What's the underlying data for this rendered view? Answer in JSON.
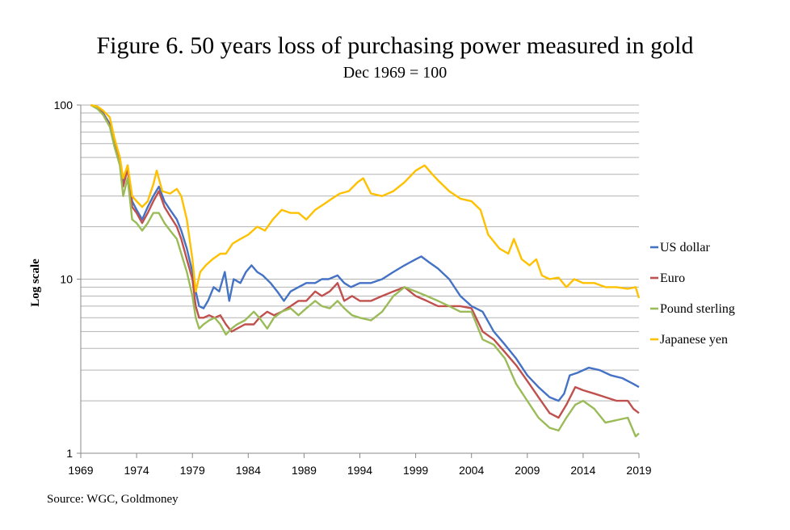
{
  "chart_data": {
    "type": "line",
    "title": "Figure 6. 50 years loss of purchasing power measured in gold",
    "subtitle": "Dec 1969 = 100",
    "ylabel": "Log scale",
    "xlabel": "",
    "y_scale": "log",
    "ylim": [
      1,
      100
    ],
    "xlim": [
      1969,
      2019
    ],
    "y_ticks": [
      "1",
      "10",
      "100"
    ],
    "x_ticks": [
      "1969",
      "1974",
      "1979",
      "1984",
      "1989",
      "1994",
      "1999",
      "2004",
      "2009",
      "2014",
      "2019"
    ],
    "grid": true,
    "legend_position": "right",
    "source": "Source: WGC, Goldmoney",
    "series": [
      {
        "name": "US dollar",
        "color": "#4472C4",
        "points": [
          [
            1969.9,
            100
          ],
          [
            1970.5,
            97
          ],
          [
            1971,
            90
          ],
          [
            1971.6,
            78
          ],
          [
            1972,
            62
          ],
          [
            1972.5,
            50
          ],
          [
            1972.8,
            35
          ],
          [
            1973.2,
            45
          ],
          [
            1973.6,
            28
          ],
          [
            1974,
            25
          ],
          [
            1974.5,
            22
          ],
          [
            1975,
            26
          ],
          [
            1975.5,
            30
          ],
          [
            1976,
            34
          ],
          [
            1976.5,
            28
          ],
          [
            1977,
            25
          ],
          [
            1977.6,
            22
          ],
          [
            1978,
            19
          ],
          [
            1978.5,
            15
          ],
          [
            1979,
            11
          ],
          [
            1979.3,
            8.5
          ],
          [
            1979.6,
            7
          ],
          [
            1980,
            6.8
          ],
          [
            1980.4,
            7.5
          ],
          [
            1980.9,
            9
          ],
          [
            1981.4,
            8.5
          ],
          [
            1981.9,
            11
          ],
          [
            1982.3,
            7.5
          ],
          [
            1982.7,
            10
          ],
          [
            1983.3,
            9.5
          ],
          [
            1983.8,
            11
          ],
          [
            1984.3,
            12
          ],
          [
            1984.8,
            11
          ],
          [
            1985.3,
            10.5
          ],
          [
            1986,
            9.5
          ],
          [
            1986.6,
            8.5
          ],
          [
            1987.2,
            7.5
          ],
          [
            1987.8,
            8.5
          ],
          [
            1988.5,
            9
          ],
          [
            1989.2,
            9.5
          ],
          [
            1990,
            9.5
          ],
          [
            1990.6,
            10
          ],
          [
            1991.2,
            10
          ],
          [
            1992,
            10.5
          ],
          [
            1992.6,
            9.5
          ],
          [
            1993.2,
            9
          ],
          [
            1994,
            9.5
          ],
          [
            1995,
            9.5
          ],
          [
            1996,
            10
          ],
          [
            1997,
            11
          ],
          [
            1998,
            12
          ],
          [
            1999,
            13
          ],
          [
            1999.5,
            13.5
          ],
          [
            2000.2,
            12.5
          ],
          [
            2001,
            11.5
          ],
          [
            2002,
            10
          ],
          [
            2003,
            8
          ],
          [
            2004,
            7
          ],
          [
            2005,
            6.5
          ],
          [
            2006,
            5
          ],
          [
            2007,
            4.2
          ],
          [
            2008,
            3.5
          ],
          [
            2009,
            2.8
          ],
          [
            2010,
            2.4
          ],
          [
            2011,
            2.1
          ],
          [
            2011.8,
            2.0
          ],
          [
            2012.3,
            2.2
          ],
          [
            2012.8,
            2.8
          ],
          [
            2013.5,
            2.9
          ],
          [
            2014.5,
            3.1
          ],
          [
            2015.5,
            3.0
          ],
          [
            2016.5,
            2.8
          ],
          [
            2017.5,
            2.7
          ],
          [
            2018.5,
            2.5
          ],
          [
            2019,
            2.4
          ]
        ]
      },
      {
        "name": "Euro",
        "color": "#C0504D",
        "points": [
          [
            1969.9,
            100
          ],
          [
            1970.5,
            96
          ],
          [
            1971,
            89
          ],
          [
            1971.6,
            76
          ],
          [
            1972,
            60
          ],
          [
            1972.5,
            48
          ],
          [
            1972.8,
            34
          ],
          [
            1973.2,
            43
          ],
          [
            1973.6,
            26
          ],
          [
            1974,
            24
          ],
          [
            1974.5,
            21
          ],
          [
            1975,
            24
          ],
          [
            1975.5,
            28
          ],
          [
            1976,
            32
          ],
          [
            1976.5,
            26
          ],
          [
            1977,
            23
          ],
          [
            1977.6,
            20
          ],
          [
            1978,
            17
          ],
          [
            1978.5,
            13
          ],
          [
            1979,
            10
          ],
          [
            1979.3,
            7
          ],
          [
            1979.6,
            6
          ],
          [
            1980,
            6
          ],
          [
            1980.5,
            6.2
          ],
          [
            1981,
            6
          ],
          [
            1981.5,
            6.2
          ],
          [
            1982,
            5.5
          ],
          [
            1982.5,
            5
          ],
          [
            1983,
            5.2
          ],
          [
            1983.7,
            5.5
          ],
          [
            1984.5,
            5.5
          ],
          [
            1985,
            6
          ],
          [
            1985.7,
            6.5
          ],
          [
            1986.3,
            6.2
          ],
          [
            1987,
            6.5
          ],
          [
            1987.8,
            7
          ],
          [
            1988.5,
            7.5
          ],
          [
            1989.2,
            7.5
          ],
          [
            1990,
            8.5
          ],
          [
            1990.6,
            8
          ],
          [
            1991.3,
            8.5
          ],
          [
            1992,
            9.5
          ],
          [
            1992.6,
            7.5
          ],
          [
            1993.3,
            8
          ],
          [
            1994,
            7.5
          ],
          [
            1995,
            7.5
          ],
          [
            1996,
            8
          ],
          [
            1997,
            8.5
          ],
          [
            1998,
            9
          ],
          [
            1999,
            8
          ],
          [
            2000,
            7.5
          ],
          [
            2001,
            7
          ],
          [
            2002,
            7
          ],
          [
            2003,
            7
          ],
          [
            2004,
            6.8
          ],
          [
            2005,
            5
          ],
          [
            2006,
            4.5
          ],
          [
            2007,
            3.8
          ],
          [
            2008,
            3.2
          ],
          [
            2009,
            2.6
          ],
          [
            2010,
            2.1
          ],
          [
            2011,
            1.7
          ],
          [
            2011.8,
            1.6
          ],
          [
            2012.5,
            1.9
          ],
          [
            2013.3,
            2.4
          ],
          [
            2014,
            2.3
          ],
          [
            2015,
            2.2
          ],
          [
            2016,
            2.1
          ],
          [
            2017,
            2.0
          ],
          [
            2018,
            2.0
          ],
          [
            2018.5,
            1.8
          ],
          [
            2019,
            1.7
          ]
        ]
      },
      {
        "name": "Pound sterling",
        "color": "#9BBB59",
        "points": [
          [
            1969.9,
            100
          ],
          [
            1970.5,
            95
          ],
          [
            1971,
            88
          ],
          [
            1971.6,
            75
          ],
          [
            1972,
            58
          ],
          [
            1972.5,
            45
          ],
          [
            1972.8,
            30
          ],
          [
            1973.2,
            38
          ],
          [
            1973.6,
            22
          ],
          [
            1974,
            21
          ],
          [
            1974.5,
            19
          ],
          [
            1975,
            21
          ],
          [
            1975.5,
            24
          ],
          [
            1976,
            24
          ],
          [
            1976.5,
            21
          ],
          [
            1977,
            19
          ],
          [
            1977.6,
            17
          ],
          [
            1978,
            14
          ],
          [
            1978.5,
            11
          ],
          [
            1979,
            8
          ],
          [
            1979.3,
            6
          ],
          [
            1979.6,
            5.2
          ],
          [
            1980,
            5.5
          ],
          [
            1980.5,
            5.8
          ],
          [
            1981,
            6
          ],
          [
            1981.5,
            5.5
          ],
          [
            1982,
            4.8
          ],
          [
            1982.5,
            5.2
          ],
          [
            1983,
            5.5
          ],
          [
            1983.7,
            5.8
          ],
          [
            1984.5,
            6.5
          ],
          [
            1985,
            6
          ],
          [
            1985.7,
            5.2
          ],
          [
            1986.3,
            6
          ],
          [
            1987,
            6.5
          ],
          [
            1987.8,
            6.8
          ],
          [
            1988.5,
            6.2
          ],
          [
            1989.2,
            6.8
          ],
          [
            1990,
            7.5
          ],
          [
            1990.6,
            7
          ],
          [
            1991.3,
            6.8
          ],
          [
            1992,
            7.5
          ],
          [
            1992.6,
            6.8
          ],
          [
            1993.3,
            6.2
          ],
          [
            1994,
            6
          ],
          [
            1995,
            5.8
          ],
          [
            1996,
            6.5
          ],
          [
            1997,
            8
          ],
          [
            1998,
            9
          ],
          [
            1999,
            8.5
          ],
          [
            2000,
            8
          ],
          [
            2001,
            7.5
          ],
          [
            2002,
            7
          ],
          [
            2003,
            6.5
          ],
          [
            2004,
            6.5
          ],
          [
            2005,
            4.5
          ],
          [
            2006,
            4.2
          ],
          [
            2007,
            3.5
          ],
          [
            2008,
            2.5
          ],
          [
            2009,
            2.0
          ],
          [
            2010,
            1.6
          ],
          [
            2011,
            1.4
          ],
          [
            2011.8,
            1.35
          ],
          [
            2012.5,
            1.6
          ],
          [
            2013.3,
            1.9
          ],
          [
            2014,
            2.0
          ],
          [
            2015,
            1.8
          ],
          [
            2016,
            1.5
          ],
          [
            2017,
            1.55
          ],
          [
            2018,
            1.6
          ],
          [
            2018.7,
            1.25
          ],
          [
            2019,
            1.3
          ]
        ]
      },
      {
        "name": "Japanese yen",
        "color": "#FFC000",
        "points": [
          [
            1969.9,
            100
          ],
          [
            1970.5,
            98
          ],
          [
            1971,
            93
          ],
          [
            1971.6,
            85
          ],
          [
            1972,
            65
          ],
          [
            1972.5,
            50
          ],
          [
            1972.8,
            38
          ],
          [
            1973.2,
            45
          ],
          [
            1973.6,
            30
          ],
          [
            1974,
            28
          ],
          [
            1974.5,
            26
          ],
          [
            1975,
            28
          ],
          [
            1975.5,
            35
          ],
          [
            1975.8,
            42
          ],
          [
            1976.3,
            32
          ],
          [
            1977,
            31
          ],
          [
            1977.6,
            33
          ],
          [
            1978,
            30
          ],
          [
            1978.5,
            22
          ],
          [
            1979,
            13
          ],
          [
            1979.3,
            8.5
          ],
          [
            1979.7,
            11
          ],
          [
            1980.2,
            12
          ],
          [
            1980.8,
            13
          ],
          [
            1981.5,
            14
          ],
          [
            1982,
            14
          ],
          [
            1982.6,
            16
          ],
          [
            1983.3,
            17
          ],
          [
            1984,
            18
          ],
          [
            1984.8,
            20
          ],
          [
            1985.5,
            19
          ],
          [
            1986.2,
            22
          ],
          [
            1987,
            25
          ],
          [
            1987.8,
            24
          ],
          [
            1988.5,
            24
          ],
          [
            1989.2,
            22
          ],
          [
            1990,
            25
          ],
          [
            1990.8,
            27
          ],
          [
            1991.5,
            29
          ],
          [
            1992.2,
            31
          ],
          [
            1993,
            32
          ],
          [
            1993.8,
            36
          ],
          [
            1994.3,
            38
          ],
          [
            1995,
            31
          ],
          [
            1996,
            30
          ],
          [
            1997,
            32
          ],
          [
            1998,
            36
          ],
          [
            1999,
            42
          ],
          [
            1999.8,
            45
          ],
          [
            2000.5,
            40
          ],
          [
            2001,
            37
          ],
          [
            2002,
            32
          ],
          [
            2003,
            29
          ],
          [
            2004,
            28
          ],
          [
            2004.8,
            25
          ],
          [
            2005.5,
            18
          ],
          [
            2006.5,
            15
          ],
          [
            2007.3,
            14
          ],
          [
            2007.8,
            17
          ],
          [
            2008.5,
            13
          ],
          [
            2009.2,
            12
          ],
          [
            2009.8,
            13
          ],
          [
            2010.3,
            10.5
          ],
          [
            2011,
            10
          ],
          [
            2011.8,
            10.2
          ],
          [
            2012.5,
            9
          ],
          [
            2013.2,
            10
          ],
          [
            2014,
            9.5
          ],
          [
            2015,
            9.5
          ],
          [
            2016,
            9
          ],
          [
            2017,
            9
          ],
          [
            2018,
            8.8
          ],
          [
            2018.7,
            9
          ],
          [
            2019,
            7.8
          ]
        ]
      }
    ]
  }
}
